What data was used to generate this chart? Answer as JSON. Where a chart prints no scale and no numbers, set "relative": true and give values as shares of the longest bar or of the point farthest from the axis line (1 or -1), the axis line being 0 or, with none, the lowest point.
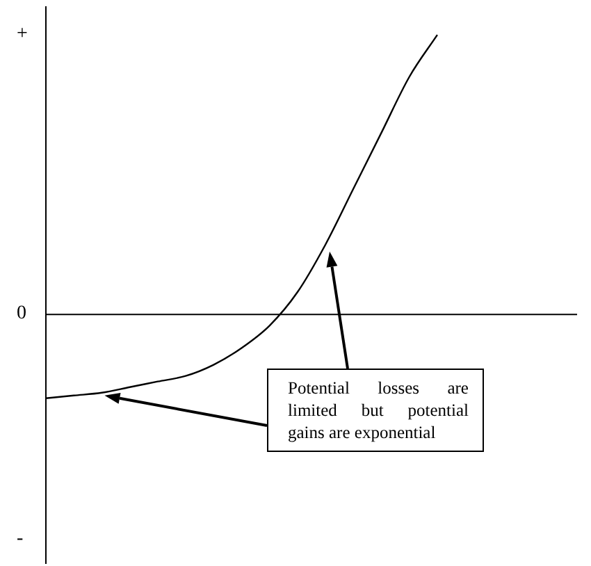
{
  "chart_data": {
    "type": "line",
    "relative": true,
    "legend": false,
    "grid": false,
    "marker": "none",
    "categories": [
      null,
      null,
      null,
      null,
      null,
      null,
      null,
      null,
      null,
      null,
      null,
      null,
      null,
      null,
      null,
      null,
      null,
      null,
      null,
      null
    ],
    "series": [
      {
        "color": "#000000",
        "values": [
          -0.3,
          -0.29,
          -0.28,
          -0.26,
          -0.24,
          -0.22,
          -0.18,
          -0.12,
          -0.04,
          0.08,
          0.25,
          0.45,
          0.65,
          0.85,
          1.0,
          null,
          null,
          null,
          null,
          null
        ]
      }
    ],
    "annotations": [
      "+",
      "0",
      "-",
      "Potential losses are limited but potential gains are exponential"
    ]
  }
}
